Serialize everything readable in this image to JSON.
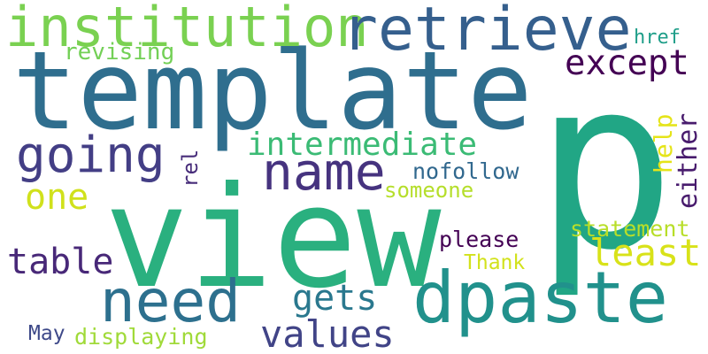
{
  "words": {
    "p": {
      "text": "p",
      "color": "#21a685"
    },
    "template": {
      "text": "template",
      "color": "#2f6e8e"
    },
    "view": {
      "text": "view",
      "color": "#2ab07f"
    },
    "institution": {
      "text": "institution",
      "color": "#7ad151"
    },
    "retrieve": {
      "text": "retrieve",
      "color": "#355f8d"
    },
    "dpaste": {
      "text": "dpaste",
      "color": "#21918c"
    },
    "need": {
      "text": "need",
      "color": "#2d708e"
    },
    "going": {
      "text": "going",
      "color": "#433e85"
    },
    "name": {
      "text": "name",
      "color": "#46337f"
    },
    "intermediate": {
      "text": "intermediate",
      "color": "#3bbb75"
    },
    "except": {
      "text": "except",
      "color": "#440154"
    },
    "values": {
      "text": "values",
      "color": "#414487"
    },
    "gets": {
      "text": "gets",
      "color": "#2a788e"
    },
    "least": {
      "text": "least",
      "color": "#d8e219"
    },
    "table": {
      "text": "table",
      "color": "#482878"
    },
    "one": {
      "text": "one",
      "color": "#d0e11c"
    },
    "revising": {
      "text": "revising",
      "color": "#73d056"
    },
    "href": {
      "text": "href",
      "color": "#1f9e89"
    },
    "help": {
      "text": "help",
      "color": "#e5e419"
    },
    "either": {
      "text": "either",
      "color": "#481b6d"
    },
    "rel": {
      "text": "rel",
      "color": "#472c7a"
    },
    "nofollow": {
      "text": "nofollow",
      "color": "#31688e"
    },
    "someone": {
      "text": "someone",
      "color": "#b5de2b"
    },
    "please": {
      "text": "please",
      "color": "#440154"
    },
    "statement": {
      "text": "statement",
      "color": "#b8de29"
    },
    "Thank": {
      "text": "Thank",
      "color": "#d2e21b"
    },
    "May": {
      "text": "May",
      "color": "#3e4989"
    },
    "displaying": {
      "text": "displaying",
      "color": "#a0da39"
    }
  }
}
